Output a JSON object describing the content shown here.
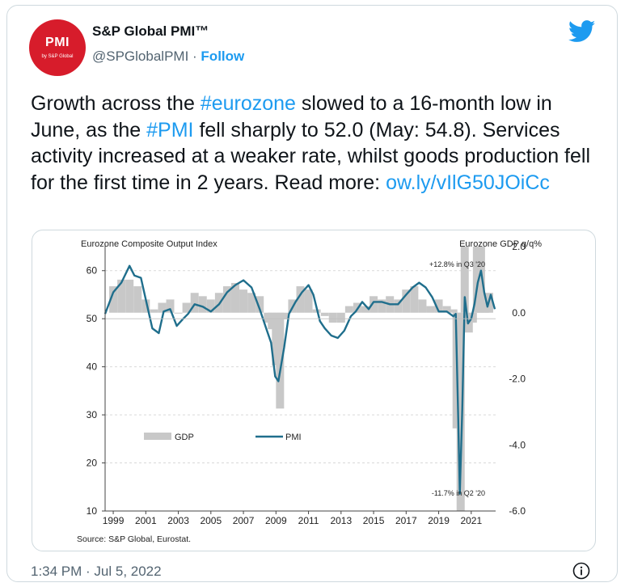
{
  "tweet": {
    "author_name": "S&P Global PMI™",
    "handle": "@SPGlobalPMI",
    "separator": " · ",
    "follow_label": "Follow",
    "avatar_text_main": "PMI",
    "avatar_text_sub": "by S&P Global",
    "text_before_1": "Growth across the ",
    "hashtag_1": "#eurozone",
    "text_before_2": " slowed to a 16-month low in June, as the ",
    "hashtag_2": "#PMI",
    "text_after": " fell sharply to 52.0 (May: 54.8). Services activity increased at a weaker rate, whilst goods production fell for the first time in 2 years. Read more: ",
    "link": "ow.ly/vIlG50JOiCc",
    "timestamp": "1:34 PM · Jul 5, 2022",
    "icons": [
      "twitter-bird-icon",
      "info-icon"
    ],
    "colors": {
      "link": "#1d9bf0",
      "avatar_bg": "#d71c2b",
      "pmi_line": "#1f6e8c",
      "gdp_bar": "#c8c8c8"
    }
  },
  "chart_data": {
    "type": "line",
    "title_left": "Eurozone Composite Output Index",
    "title_right": "Eurozone GDP q/q%",
    "source": "Source: S&P Global, Eurostat.",
    "x_ticks": [
      "1999",
      "2001",
      "2003",
      "2005",
      "2007",
      "2009",
      "2011",
      "2013",
      "2015",
      "2017",
      "2019",
      "2021"
    ],
    "xlim": [
      1998.5,
      2022.5
    ],
    "ylim_left": [
      10,
      65
    ],
    "y_ticks_left": [
      "10",
      "20",
      "30",
      "40",
      "50",
      "60"
    ],
    "ylim_right": [
      -6.0,
      2.0
    ],
    "y_ticks_right": [
      "2.0",
      "0.0",
      "-2.0",
      "-4.0",
      "-6.0"
    ],
    "legend": [
      "GDP",
      "PMI"
    ],
    "annotations": [
      "+12.8% in Q3 '20",
      "-11.7% in Q2 '20"
    ],
    "series": [
      {
        "name": "PMI",
        "x": [
          1998.5,
          1999.0,
          1999.5,
          2000.0,
          2000.3,
          2000.7,
          2001.0,
          2001.4,
          2001.8,
          2002.1,
          2002.5,
          2002.9,
          2003.3,
          2003.6,
          2004.0,
          2004.5,
          2005.0,
          2005.5,
          2006.0,
          2006.5,
          2007.0,
          2007.5,
          2008.0,
          2008.4,
          2008.7,
          2008.95,
          2009.15,
          2009.5,
          2009.8,
          2010.2,
          2010.6,
          2011.0,
          2011.3,
          2011.7,
          2012.0,
          2012.4,
          2012.8,
          2013.2,
          2013.6,
          2013.9,
          2014.3,
          2014.7,
          2015.0,
          2015.5,
          2016.0,
          2016.5,
          2017.0,
          2017.4,
          2017.8,
          2018.2,
          2018.6,
          2019.0,
          2019.5,
          2019.9,
          2020.05,
          2020.2,
          2020.3,
          2020.45,
          2020.6,
          2020.8,
          2021.0,
          2021.2,
          2021.4,
          2021.6,
          2021.8,
          2022.0,
          2022.2,
          2022.45
        ],
        "values": [
          51.0,
          55.5,
          57.5,
          61.0,
          59.0,
          58.5,
          54.0,
          48.0,
          47.0,
          51.5,
          52.0,
          48.5,
          50.0,
          51.0,
          53.0,
          52.5,
          51.5,
          53.0,
          55.5,
          57.0,
          58.0,
          56.5,
          52.0,
          48.0,
          45.0,
          38.0,
          37.0,
          44.0,
          51.0,
          53.5,
          55.5,
          57.0,
          55.0,
          49.5,
          48.0,
          46.5,
          46.0,
          47.5,
          50.5,
          51.5,
          53.5,
          52.0,
          53.5,
          53.5,
          53.0,
          53.0,
          55.0,
          56.5,
          57.5,
          56.5,
          54.5,
          51.5,
          51.5,
          50.5,
          51.0,
          29.5,
          13.6,
          31.0,
          54.5,
          49.0,
          50.0,
          53.0,
          57.5,
          60.0,
          55.5,
          52.5,
          55.0,
          52.0
        ]
      },
      {
        "name": "GDP",
        "x": [
          1999.0,
          1999.5,
          2000.0,
          2000.5,
          2001.0,
          2001.5,
          2002.0,
          2002.5,
          2003.0,
          2003.5,
          2004.0,
          2004.5,
          2005.0,
          2005.5,
          2006.0,
          2006.5,
          2007.0,
          2007.5,
          2008.0,
          2008.5,
          2008.75,
          2009.0,
          2009.25,
          2009.5,
          2010.0,
          2010.5,
          2011.0,
          2011.5,
          2012.0,
          2012.5,
          2013.0,
          2013.5,
          2014.0,
          2014.5,
          2015.0,
          2015.5,
          2016.0,
          2016.5,
          2017.0,
          2017.5,
          2018.0,
          2018.5,
          2019.0,
          2019.5,
          2019.9,
          2020.1,
          2020.35,
          2020.6,
          2020.85,
          2021.1,
          2021.35,
          2021.6,
          2021.85,
          2022.1
        ],
        "values": [
          0.8,
          1.0,
          1.0,
          0.8,
          0.4,
          0.1,
          0.3,
          0.4,
          0.0,
          0.3,
          0.6,
          0.5,
          0.4,
          0.6,
          0.8,
          0.9,
          0.7,
          0.6,
          0.5,
          -0.3,
          -0.5,
          -1.6,
          -2.9,
          -0.2,
          0.4,
          0.8,
          0.7,
          0.1,
          -0.1,
          -0.3,
          -0.3,
          0.2,
          0.3,
          0.2,
          0.5,
          0.4,
          0.5,
          0.4,
          0.7,
          0.8,
          0.4,
          0.2,
          0.4,
          0.2,
          0.1,
          -3.5,
          -11.7,
          12.8,
          -0.6,
          -0.3,
          2.1,
          2.3,
          0.3,
          0.6
        ]
      }
    ]
  }
}
